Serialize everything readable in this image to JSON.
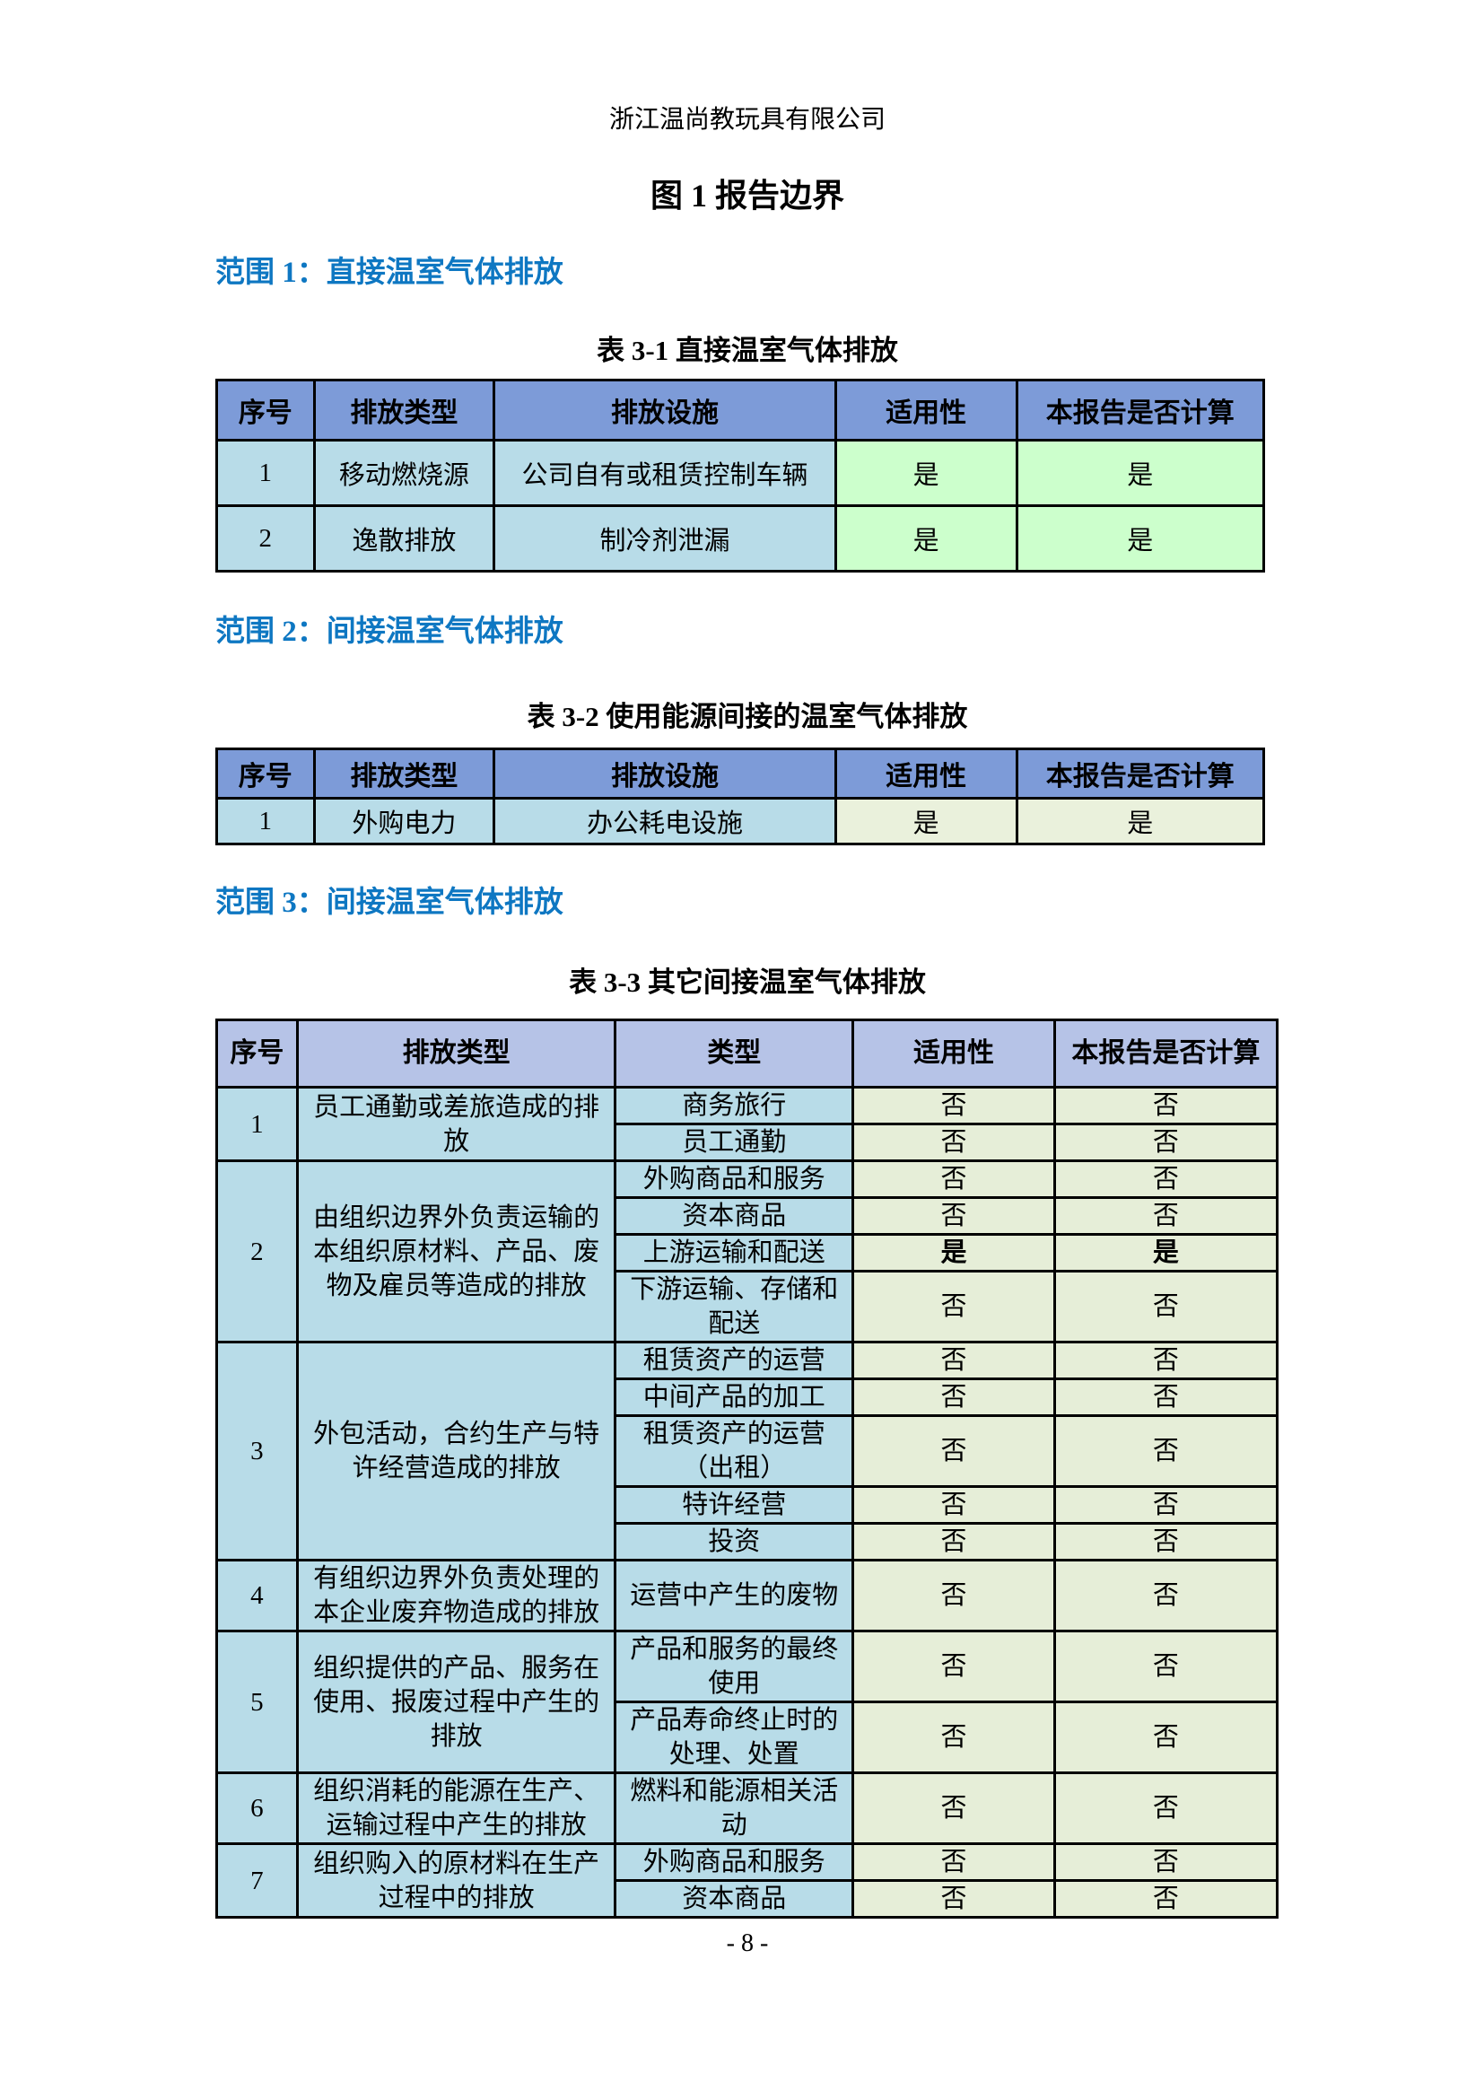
{
  "page": {
    "header": "浙江温尚教玩具有限公司",
    "title": "图 1 报告边界",
    "footer": "- 8 -"
  },
  "colors": {
    "section_heading_blue": "#0e77c2",
    "table12_header_bg": "#7d9bd8",
    "table3_header_bg": "#b6c3e7",
    "body_cell_blue": "#b8dce8",
    "table1_yes_green": "#ccffcc",
    "table2_yes_pale_green": "#eaf1dc",
    "table3_answer_pale_green": "#e6eed8"
  },
  "sections": [
    {
      "heading": "范围 1：直接温室气体排放",
      "table_caption": "表 3-1 直接温室气体排放"
    },
    {
      "heading": "范围 2：间接温室气体排放",
      "table_caption": "表 3-2 使用能源间接的温室气体排放"
    },
    {
      "heading": "范围 3：间接温室气体排放",
      "table_caption": "表 3-3 其它间接温室气体排放"
    }
  ],
  "table1": {
    "columns": [
      "序号",
      "排放类型",
      "排放设施",
      "适用性",
      "本报告是否计算"
    ],
    "rows": [
      [
        "1",
        "移动燃烧源",
        "公司自有或租赁控制车辆",
        "是",
        "是"
      ],
      [
        "2",
        "逸散排放",
        "制冷剂泄漏",
        "是",
        "是"
      ]
    ]
  },
  "table2": {
    "columns": [
      "序号",
      "排放类型",
      "排放设施",
      "适用性",
      "本报告是否计算"
    ],
    "rows": [
      [
        "1",
        "外购电力",
        "办公耗电设施",
        "是",
        "是"
      ]
    ]
  },
  "table3": {
    "columns": [
      "序号",
      "排放类型",
      "类型",
      "适用性",
      "本报告是否计算"
    ],
    "groups": [
      {
        "num": "1",
        "type": "员工通勤或差旅造成的排放",
        "rows": [
          {
            "cat": "商务旅行",
            "app": "否",
            "calc": "否"
          },
          {
            "cat": "员工通勤",
            "app": "否",
            "calc": "否"
          }
        ]
      },
      {
        "num": "2",
        "type": "由组织边界外负责运输的本组织原材料、产品、废物及雇员等造成的排放",
        "rows": [
          {
            "cat": "外购商品和服务",
            "app": "否",
            "calc": "否"
          },
          {
            "cat": "资本商品",
            "app": "否",
            "calc": "否"
          },
          {
            "cat": "上游运输和配送",
            "app": "是",
            "calc": "是",
            "bold": true
          },
          {
            "cat": "下游运输、存储和配送",
            "app": "否",
            "calc": "否"
          }
        ]
      },
      {
        "num": "3",
        "type": "外包活动，合约生产与特许经营造成的排放",
        "rows": [
          {
            "cat": "租赁资产的运营",
            "app": "否",
            "calc": "否"
          },
          {
            "cat": "中间产品的加工",
            "app": "否",
            "calc": "否"
          },
          {
            "cat": "租赁资产的运营（出租）",
            "app": "否",
            "calc": "否"
          },
          {
            "cat": "特许经营",
            "app": "否",
            "calc": "否"
          },
          {
            "cat": "投资",
            "app": "否",
            "calc": "否"
          }
        ]
      },
      {
        "num": "4",
        "type": "有组织边界外负责处理的本企业废弃物造成的排放",
        "rows": [
          {
            "cat": "运营中产生的废物",
            "app": "否",
            "calc": "否"
          }
        ]
      },
      {
        "num": "5",
        "type": "组织提供的产品、服务在使用、报废过程中产生的排放",
        "rows": [
          {
            "cat": "产品和服务的最终使用",
            "app": "否",
            "calc": "否"
          },
          {
            "cat": "产品寿命终止时的处理、处置",
            "app": "否",
            "calc": "否"
          }
        ]
      },
      {
        "num": "6",
        "type": "组织消耗的能源在生产、运输过程中产生的排放",
        "rows": [
          {
            "cat": "燃料和能源相关活动",
            "app": "否",
            "calc": "否"
          }
        ]
      },
      {
        "num": "7",
        "type": "组织购入的原材料在生产过程中的排放",
        "rows": [
          {
            "cat": "外购商品和服务",
            "app": "否",
            "calc": "否"
          },
          {
            "cat": "资本商品",
            "app": "否",
            "calc": "否"
          }
        ]
      }
    ]
  }
}
